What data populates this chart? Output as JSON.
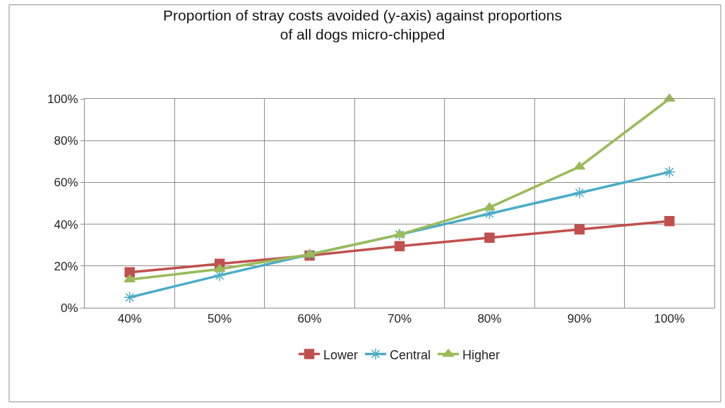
{
  "chart_data": {
    "type": "line",
    "title": "Proportion of stray costs avoided (y-axis) against proportions\nof all dogs micro-chipped",
    "categories": [
      "40%",
      "50%",
      "60%",
      "70%",
      "80%",
      "90%",
      "100%"
    ],
    "series": [
      {
        "name": "Lower",
        "color": "#c0504d",
        "marker": "square",
        "values": [
          17,
          21,
          25,
          29.5,
          33.5,
          37.5,
          41.5
        ]
      },
      {
        "name": "Central",
        "color": "#4bacc6",
        "marker": "cross",
        "values": [
          5,
          15.5,
          25.5,
          35,
          45,
          55,
          65
        ]
      },
      {
        "name": "Higher",
        "color": "#9bbb59",
        "marker": "triangle",
        "values": [
          13.5,
          18.5,
          25.5,
          35,
          48,
          67.5,
          100
        ]
      }
    ],
    "ylim": [
      0,
      100
    ],
    "yticks": [
      {
        "value": 0,
        "label": "0%"
      },
      {
        "value": 20,
        "label": "20%"
      },
      {
        "value": 40,
        "label": "40%"
      },
      {
        "value": 60,
        "label": "60%"
      },
      {
        "value": 80,
        "label": "80%"
      },
      {
        "value": 100,
        "label": "100%"
      }
    ],
    "grid": true,
    "legend": "bottom",
    "line_style": "solid"
  }
}
